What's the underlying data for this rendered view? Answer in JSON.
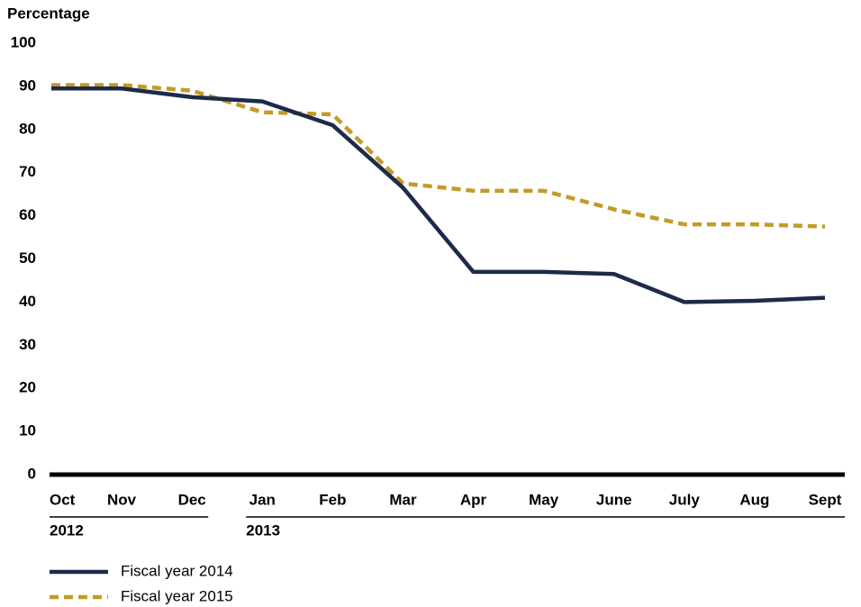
{
  "chart_data": {
    "type": "line",
    "y_label": "Percentage",
    "categories": [
      "Oct",
      "Nov",
      "Dec",
      "Jan",
      "Feb",
      "Mar",
      "Apr",
      "May",
      "June",
      "July",
      "Aug",
      "Sept"
    ],
    "x_groups": [
      {
        "label": "2012",
        "from": "Oct",
        "to": "Dec"
      },
      {
        "label": "2013",
        "from": "Jan",
        "to": "Sept"
      }
    ],
    "series": [
      {
        "name": "Fiscal year 2014",
        "color": "#1c2b4a",
        "dashed": false,
        "values": [
          89.5,
          89.5,
          87.5,
          86.5,
          81,
          66.5,
          47,
          47,
          46.5,
          40,
          40.3,
          41
        ]
      },
      {
        "name": "Fiscal year 2015",
        "color": "#c49a28",
        "dashed": true,
        "values": [
          90.3,
          90.3,
          89,
          84,
          83.5,
          67.5,
          65.8,
          65.8,
          61.5,
          58,
          58,
          57.5
        ]
      }
    ],
    "ylim": [
      0,
      100
    ],
    "yticks": [
      0,
      10,
      20,
      30,
      40,
      50,
      60,
      70,
      80,
      90,
      100
    ],
    "grid": false
  }
}
